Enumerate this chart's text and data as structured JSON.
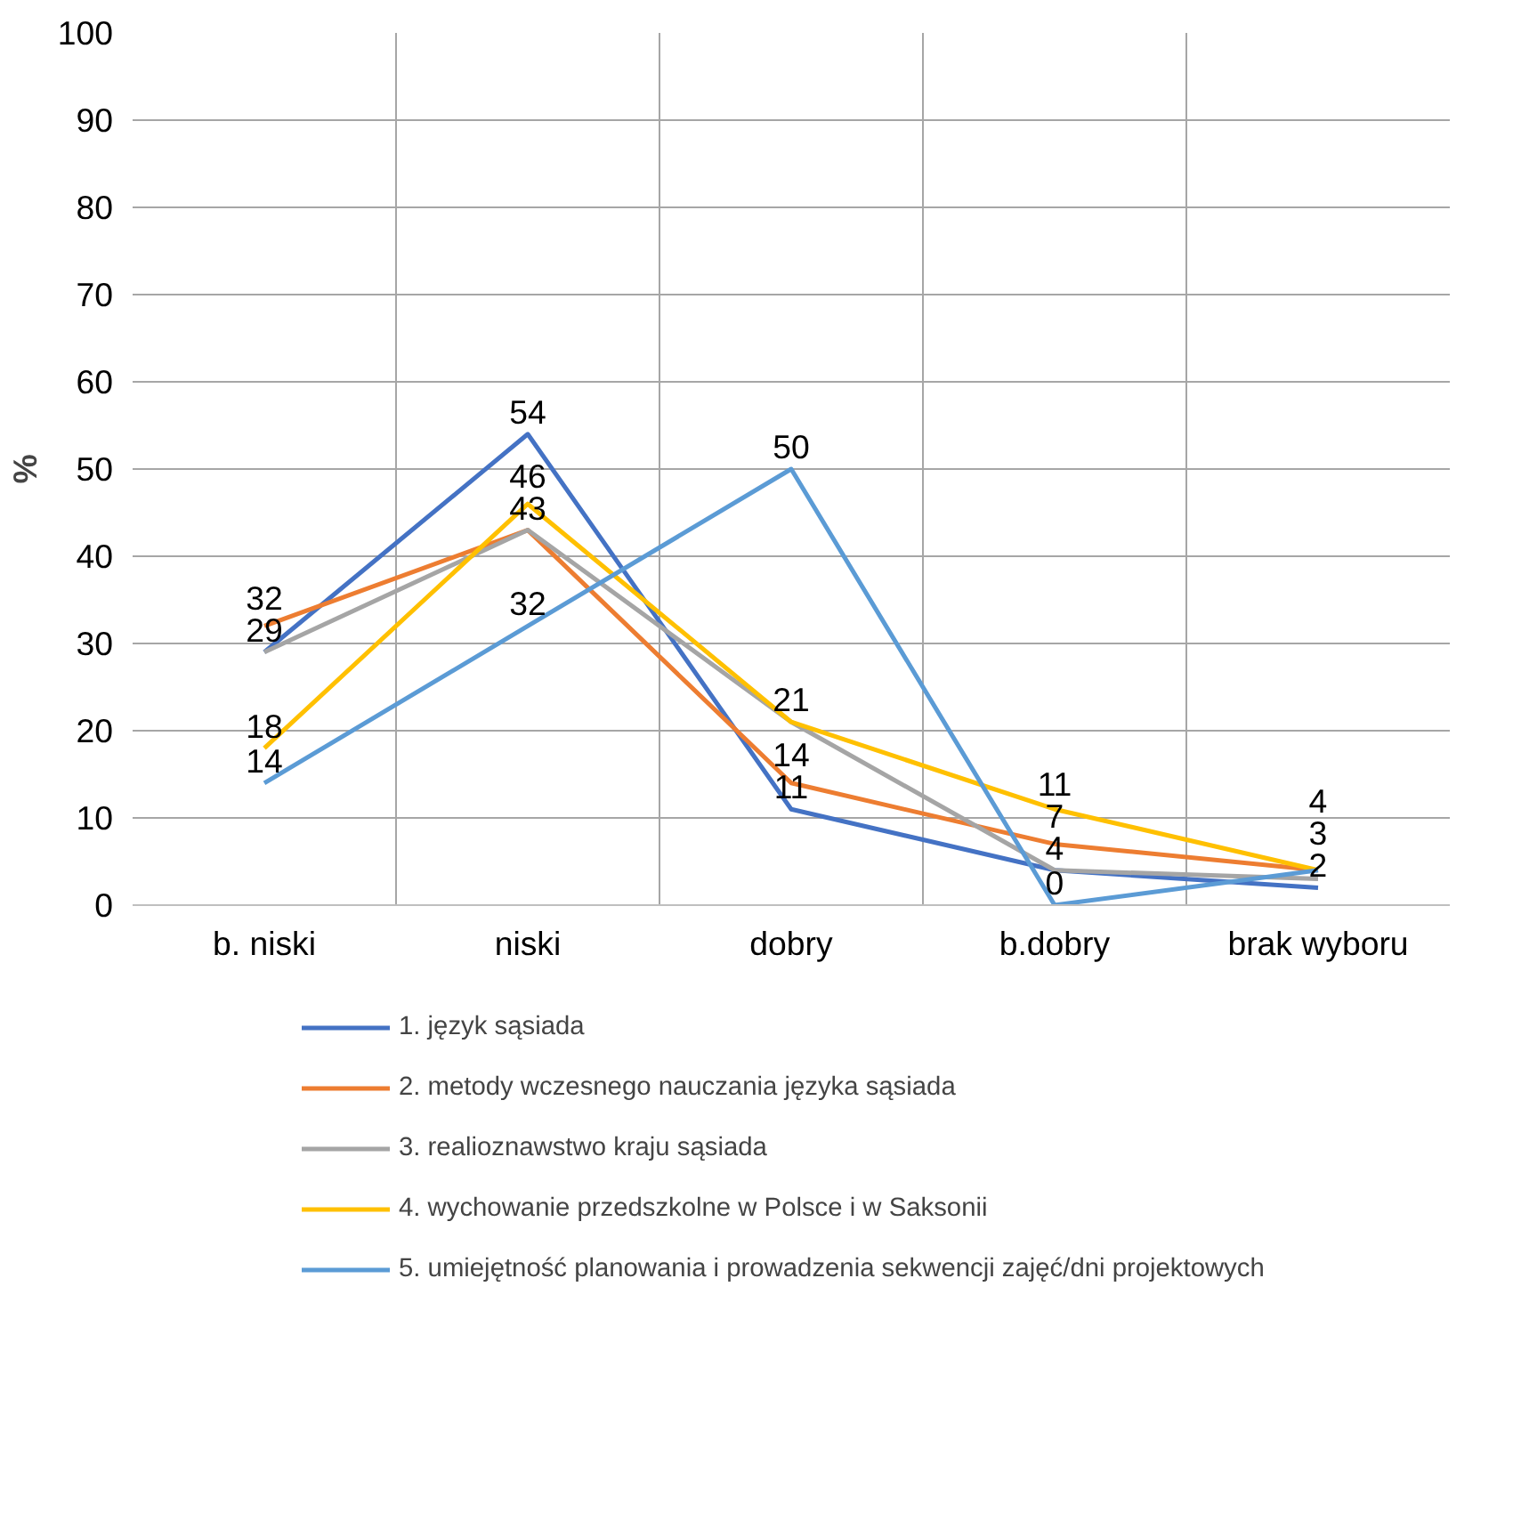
{
  "chart_data": {
    "type": "line",
    "ylabel": "%",
    "categories": [
      "b. niski",
      "niski",
      "dobry",
      "b.dobry",
      "brak wyboru"
    ],
    "series": [
      {
        "name": "1. język sąsiada",
        "color": "#4472c4",
        "values": [
          29,
          54,
          11,
          4,
          2
        ],
        "value_labels": [
          "29",
          "54",
          "11",
          "4",
          "2"
        ]
      },
      {
        "name": "2. metody wczesnego nauczania języka sąsiada",
        "color": "#ed7d31",
        "values": [
          32,
          43,
          14,
          7,
          4
        ],
        "value_labels": [
          "32",
          "43",
          "14",
          "7",
          "4"
        ]
      },
      {
        "name": "3. realioznawstwo kraju sąsiada",
        "color": "#a5a5a5",
        "values": [
          29,
          43,
          21,
          4,
          3
        ],
        "value_labels": [
          null,
          null,
          null,
          null,
          "3"
        ]
      },
      {
        "name": "4. wychowanie przedszkolne w Polsce i w Saksonii",
        "color": "#ffc000",
        "values": [
          18,
          46,
          21,
          11,
          4
        ],
        "value_labels": [
          "18",
          "46",
          "21",
          "11",
          null
        ]
      },
      {
        "name": "5. umiejętność planowania i prowadzenia sekwencji zajęć/dni projektowych",
        "color": "#5b9bd5",
        "values": [
          14,
          32,
          50,
          0,
          4
        ],
        "value_labels": [
          "14",
          "32",
          "50",
          "0",
          null
        ]
      }
    ],
    "ylim": [
      0,
      100
    ],
    "yticks": [
      0,
      10,
      20,
      30,
      40,
      50,
      60,
      70,
      80,
      90,
      100
    ],
    "grid": true,
    "legend": "bottom",
    "marker": "none",
    "line_style": "solid"
  }
}
